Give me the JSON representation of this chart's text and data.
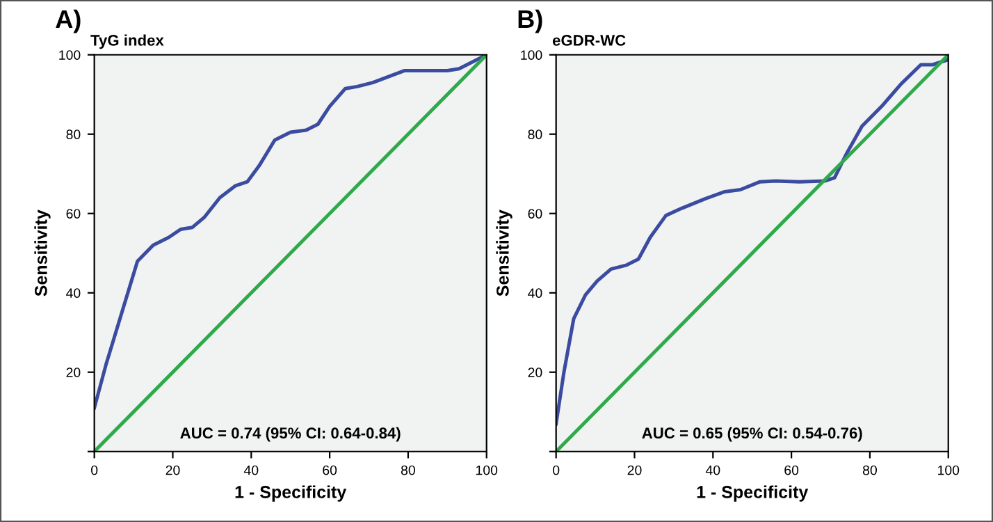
{
  "chart_data": [
    {
      "type": "line",
      "title": "A)",
      "subtitle": "TyG index",
      "xlabel": "1 - Specificity",
      "ylabel": "Sensitivity",
      "xlim": [
        0,
        100
      ],
      "ylim": [
        0,
        100
      ],
      "xticks": [
        0,
        20,
        40,
        60,
        80,
        100
      ],
      "yticks": [
        {
          "value": 0,
          "label": null
        },
        20,
        40,
        60,
        80,
        100
      ],
      "annotations": [
        "AUC = 0.74 (95% CI: 0.64-0.84)"
      ],
      "series": [
        {
          "color": "#3b4ba0",
          "x": [
            0,
            3,
            7,
            11,
            15,
            19,
            22,
            25,
            28,
            32,
            36,
            39,
            42,
            46,
            50,
            54,
            57,
            60,
            64,
            67,
            71,
            75,
            79,
            83,
            87,
            90,
            93,
            97,
            100
          ],
          "values": [
            11,
            22,
            35,
            48,
            52,
            54,
            56,
            56.5,
            59,
            64,
            67,
            68,
            72,
            78.5,
            80.5,
            81,
            82.5,
            87,
            91.5,
            92,
            93,
            94.5,
            96,
            96,
            96,
            96,
            96.5,
            98.5,
            100
          ]
        },
        {
          "color": "#2eaa4a",
          "x": [
            0,
            100
          ],
          "values": [
            0,
            100
          ]
        }
      ]
    },
    {
      "type": "line",
      "title": "B)",
      "subtitle": "eGDR-WC",
      "xlabel": "1 - Specificity",
      "ylabel": "Sensitivity",
      "xlim": [
        0,
        100
      ],
      "ylim": [
        0,
        100
      ],
      "xticks": [
        0,
        20,
        40,
        60,
        80,
        100
      ],
      "yticks": [
        {
          "value": 0,
          "label": null
        },
        20,
        40,
        60,
        80,
        100
      ],
      "annotations": [
        "AUC = 0.65 (95% CI: 0.54-0.76)"
      ],
      "series": [
        {
          "color": "#3b4ba0",
          "x": [
            0,
            2,
            4.5,
            7.5,
            10.5,
            14,
            18,
            21,
            24,
            28,
            32,
            38,
            43,
            47,
            52,
            56,
            62,
            68.5,
            71,
            74,
            78,
            83,
            88,
            93,
            96,
            100
          ],
          "values": [
            7,
            20,
            33.5,
            39.5,
            43,
            46,
            47,
            48.5,
            54,
            59.5,
            61.3,
            63.7,
            65.5,
            66,
            68,
            68.2,
            68,
            68.2,
            69,
            75,
            82,
            87,
            92.7,
            97.5,
            97.5,
            98.8
          ]
        },
        {
          "color": "#2eaa4a",
          "x": [
            0,
            100
          ],
          "values": [
            0,
            100
          ]
        }
      ]
    }
  ]
}
